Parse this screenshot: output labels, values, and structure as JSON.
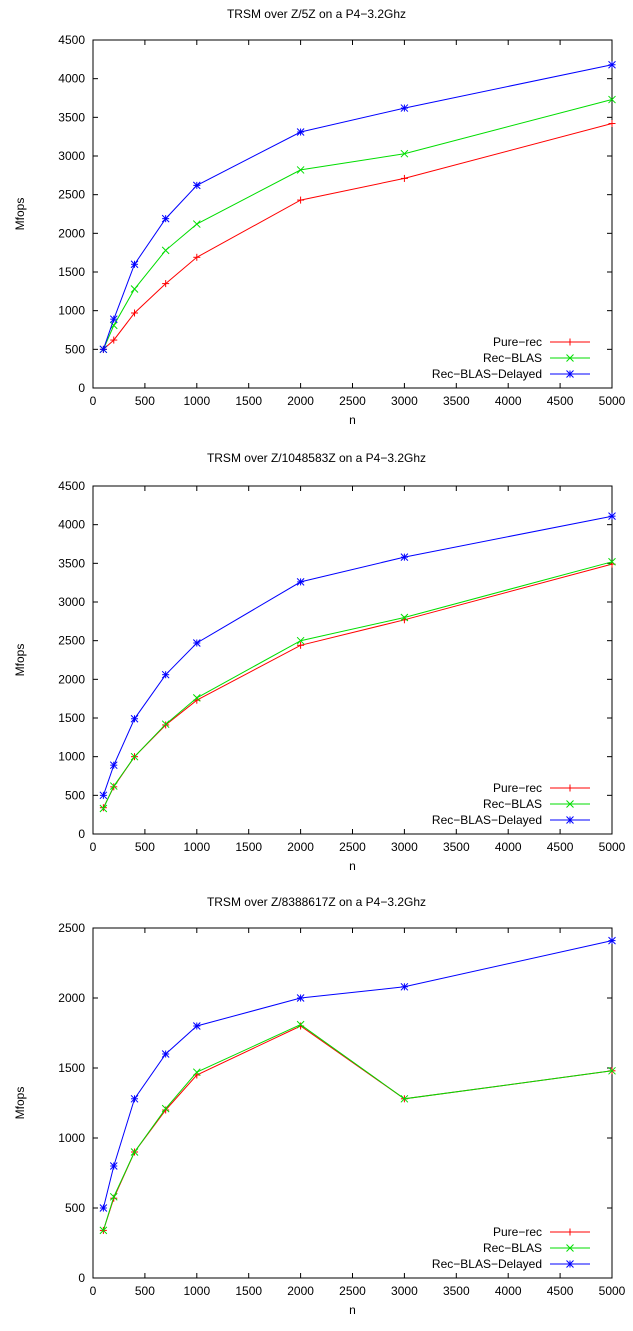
{
  "chart_data": [
    {
      "type": "line",
      "title": "TRSM over Z/5Z on a P4−3.2Ghz",
      "xlabel": "n",
      "ylabel": "Mfops",
      "xlim": [
        0,
        5000
      ],
      "ylim": [
        0,
        4500
      ],
      "xticks": [
        0,
        500,
        1000,
        1500,
        2000,
        2500,
        3000,
        3500,
        4000,
        4500,
        5000
      ],
      "yticks": [
        0,
        500,
        1000,
        1500,
        2000,
        2500,
        3000,
        3500,
        4000,
        4500
      ],
      "grid": false,
      "legend_position": "bottom-right",
      "x": [
        100,
        200,
        400,
        700,
        1000,
        2000,
        3000,
        5000
      ],
      "series": [
        {
          "name": "Pure−rec",
          "color": "#ff0000",
          "marker": "plus",
          "values": [
            500,
            620,
            970,
            1350,
            1690,
            2430,
            2710,
            3420
          ]
        },
        {
          "name": "Rec−BLAS",
          "color": "#00dd00",
          "marker": "cross",
          "values": [
            500,
            810,
            1280,
            1780,
            2120,
            2820,
            3030,
            3730
          ]
        },
        {
          "name": "Rec−BLAS−Delayed",
          "color": "#0000ff",
          "marker": "star",
          "values": [
            500,
            890,
            1600,
            2190,
            2620,
            3310,
            3620,
            4180
          ]
        }
      ]
    },
    {
      "type": "line",
      "title": "TRSM over Z/1048583Z on a P4−3.2Ghz",
      "xlabel": "n",
      "ylabel": "Mfops",
      "xlim": [
        0,
        5000
      ],
      "ylim": [
        0,
        4500
      ],
      "xticks": [
        0,
        500,
        1000,
        1500,
        2000,
        2500,
        3000,
        3500,
        4000,
        4500,
        5000
      ],
      "yticks": [
        0,
        500,
        1000,
        1500,
        2000,
        2500,
        3000,
        3500,
        4000,
        4500
      ],
      "grid": false,
      "legend_position": "bottom-right",
      "x": [
        100,
        200,
        400,
        700,
        1000,
        2000,
        3000,
        5000
      ],
      "series": [
        {
          "name": "Pure−rec",
          "color": "#ff0000",
          "marker": "plus",
          "values": [
            340,
            610,
            1000,
            1410,
            1730,
            2440,
            2770,
            3490
          ]
        },
        {
          "name": "Rec−BLAS",
          "color": "#00dd00",
          "marker": "cross",
          "values": [
            330,
            620,
            1000,
            1420,
            1760,
            2500,
            2800,
            3520
          ]
        },
        {
          "name": "Rec−BLAS−Delayed",
          "color": "#0000ff",
          "marker": "star",
          "values": [
            500,
            890,
            1490,
            2060,
            2470,
            3260,
            3580,
            4110
          ]
        }
      ]
    },
    {
      "type": "line",
      "title": "TRSM over Z/8388617Z on a P4−3.2Ghz",
      "xlabel": "n",
      "ylabel": "Mfops",
      "xlim": [
        0,
        5000
      ],
      "ylim": [
        0,
        2500
      ],
      "xticks": [
        0,
        500,
        1000,
        1500,
        2000,
        2500,
        3000,
        3500,
        4000,
        4500,
        5000
      ],
      "yticks": [
        0,
        500,
        1000,
        1500,
        2000,
        2500
      ],
      "grid": false,
      "legend_position": "bottom-right",
      "x": [
        100,
        200,
        400,
        700,
        1000,
        2000,
        3000,
        5000
      ],
      "series": [
        {
          "name": "Pure−rec",
          "color": "#ff0000",
          "marker": "plus",
          "values": [
            340,
            570,
            900,
            1200,
            1450,
            1800,
            1280,
            1480
          ]
        },
        {
          "name": "Rec−BLAS",
          "color": "#00dd00",
          "marker": "cross",
          "values": [
            340,
            580,
            900,
            1210,
            1470,
            1810,
            1280,
            1480
          ]
        },
        {
          "name": "Rec−BLAS−Delayed",
          "color": "#0000ff",
          "marker": "star",
          "values": [
            500,
            800,
            1280,
            1600,
            1800,
            2000,
            2080,
            2410
          ]
        }
      ]
    }
  ]
}
